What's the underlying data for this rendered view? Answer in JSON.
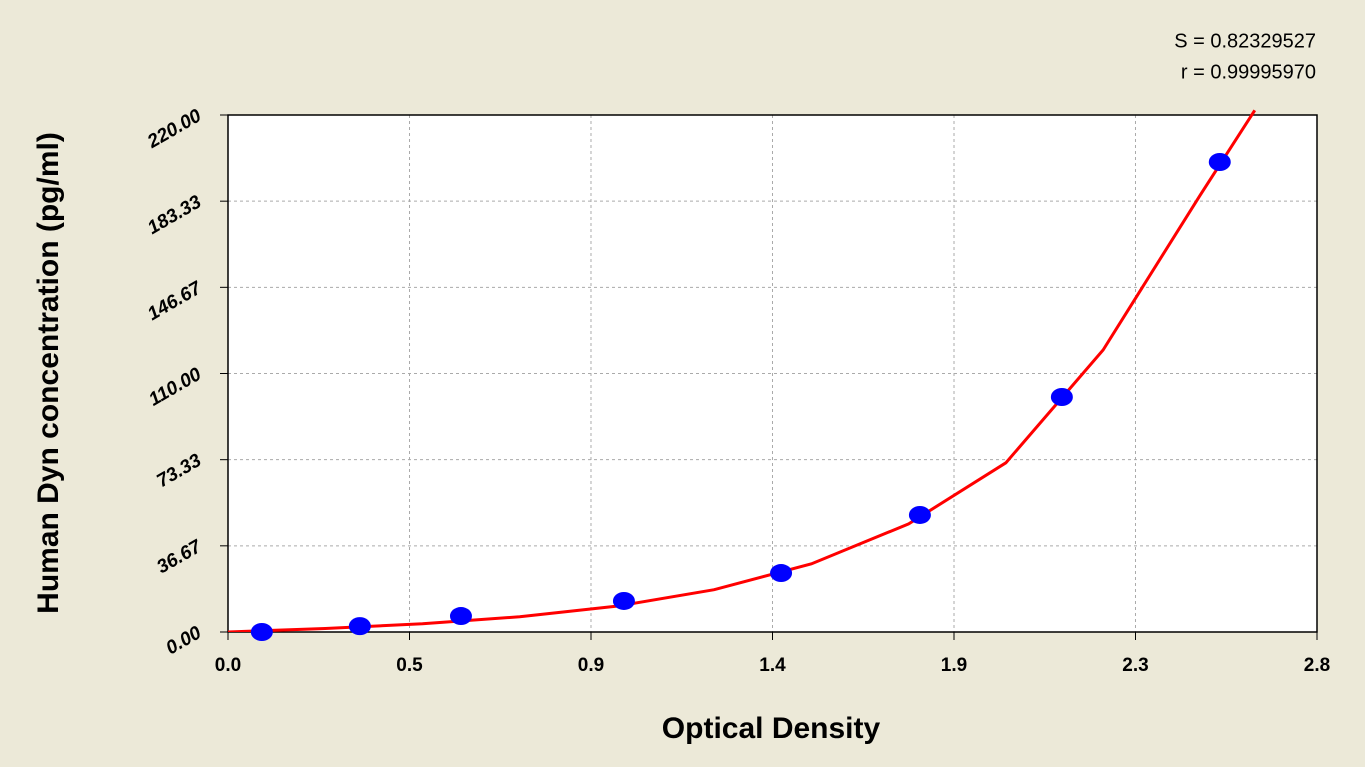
{
  "chart_data": {
    "type": "scatter",
    "x_label": "Optical Density",
    "y_label": "Human Dyn concentration (pg/ml)",
    "annotations": [
      "S = 0.82329527",
      "r = 0.99995970"
    ],
    "x": [
      0.087,
      0.339,
      0.599,
      1.018,
      1.422,
      1.779,
      2.144,
      2.55
    ],
    "values": [
      0,
      2.5,
      6.8,
      13.2,
      25.1,
      49.8,
      100,
      200
    ],
    "color": "#0000ff",
    "fit": {
      "x": [
        0,
        0.25,
        0.5,
        0.75,
        1.0,
        1.25,
        1.5,
        1.75,
        2.0,
        2.25,
        2.5,
        2.64
      ],
      "values": [
        0,
        1.5,
        3.5,
        6.5,
        11,
        18,
        29,
        46,
        72,
        120,
        186,
        222
      ],
      "color": "#ff0000"
    },
    "xlim": [
      0,
      2.8
    ],
    "xticks": [
      {
        "value": 0,
        "label": "0.0"
      },
      {
        "value": 0.4667,
        "label": "0.5"
      },
      {
        "value": 0.9333,
        "label": "0.9"
      },
      1.4,
      {
        "value": 1.8667,
        "label": "1.9"
      },
      {
        "value": 2.3333,
        "label": "2.3"
      },
      2.8
    ],
    "ylim": [
      0,
      220
    ],
    "yticks": [
      {
        "value": 0,
        "label": "0.00"
      },
      36.67,
      73.33,
      {
        "value": 110,
        "label": "110.00"
      },
      146.67,
      183.33,
      {
        "value": 220,
        "label": "220.00"
      }
    ],
    "grid": true
  }
}
